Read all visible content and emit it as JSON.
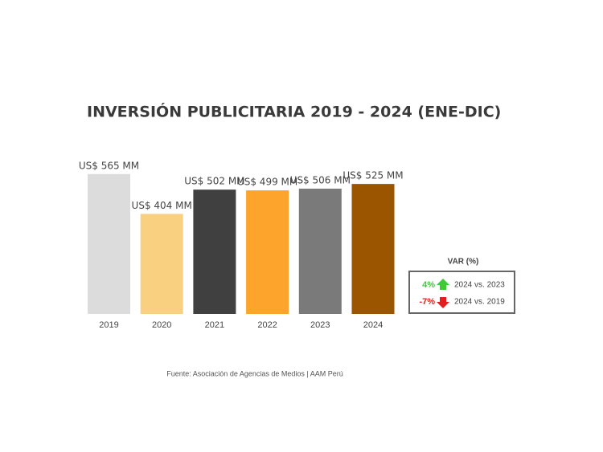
{
  "chart_data": {
    "type": "bar",
    "title": "INVERSIÓN PUBLICITARIA 2019 - 2024 (ENE-DIC)",
    "categories": [
      "2019",
      "2020",
      "2021",
      "2022",
      "2023",
      "2024"
    ],
    "values": [
      565,
      404,
      502,
      499,
      506,
      525
    ],
    "value_labels": [
      "US$ 565 MM",
      "US$ 404 MM",
      "US$ 502 MM",
      "US$ 499 MM",
      "US$ 506 MM",
      "US$ 525 MM"
    ],
    "colors": [
      "#dcdcdc",
      "#f9d080",
      "#404040",
      "#fda42c",
      "#7a7a7a",
      "#9b5500"
    ],
    "ylim": [
      0,
      600
    ],
    "source": "Fuente: Asociación de Agencias de Medios | AAM Perú",
    "variation": {
      "title": "VAR (%)",
      "rows": [
        {
          "value": 4,
          "label": "4%",
          "note": "2024 vs. 2023"
        },
        {
          "value": -7,
          "label": "-7%",
          "note": "2024 vs. 2019"
        }
      ]
    }
  }
}
